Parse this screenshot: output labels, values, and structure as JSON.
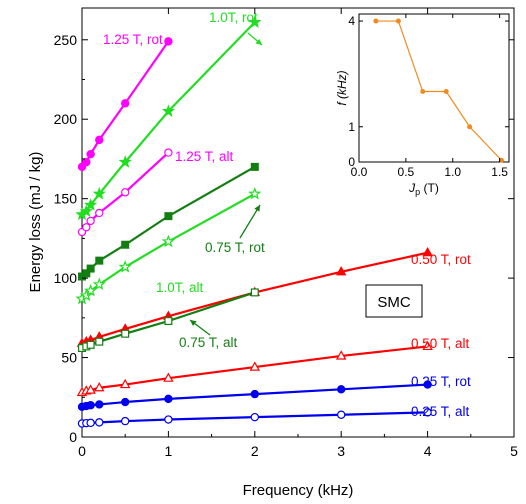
{
  "chart_data": {
    "type": "line",
    "xlabel": "Frequency (kHz)",
    "ylabel": "Energy loss (mJ / kg)",
    "xlim": [
      0,
      5
    ],
    "ylim": [
      0,
      270
    ],
    "xticks": [
      0,
      1,
      2,
      3,
      4,
      5
    ],
    "yticks": [
      0,
      50,
      100,
      150,
      200,
      250
    ],
    "grid": false,
    "annotation": "SMC",
    "series": [
      {
        "name": "1.25 T, rot",
        "color": "#ff00ff",
        "marker": "circle",
        "filled": true,
        "x": [
          0,
          0.05,
          0.1,
          0.2,
          0.5,
          1
        ],
        "y": [
          170,
          173,
          178,
          187,
          210,
          249
        ]
      },
      {
        "name": "1.0T, rot",
        "color": "#22dd22",
        "marker": "star",
        "filled": true,
        "x": [
          0,
          0.05,
          0.1,
          0.2,
          0.5,
          1,
          2
        ],
        "y": [
          140,
          142,
          146,
          153,
          173,
          205,
          261
        ]
      },
      {
        "name": "1.25 T, alt",
        "color": "#ff00ff",
        "marker": "circle",
        "filled": false,
        "x": [
          0,
          0.05,
          0.1,
          0.2,
          0.5,
          1
        ],
        "y": [
          129,
          132,
          136,
          141,
          154,
          179
        ]
      },
      {
        "name": "0.75 T, rot",
        "color": "#137f13",
        "marker": "square",
        "filled": true,
        "x": [
          0,
          0.05,
          0.1,
          0.2,
          0.5,
          1,
          2
        ],
        "y": [
          101,
          103,
          106,
          111,
          121,
          139,
          170
        ]
      },
      {
        "name": "1.0T, alt",
        "color": "#22dd22",
        "marker": "star",
        "filled": false,
        "x": [
          0,
          0.05,
          0.1,
          0.2,
          0.5,
          1,
          2
        ],
        "y": [
          87,
          89,
          92,
          96,
          107,
          123,
          153
        ]
      },
      {
        "name": "0.50 T, rot",
        "color": "#ff0000",
        "marker": "triangle",
        "filled": true,
        "x": [
          0,
          0.05,
          0.1,
          0.2,
          0.5,
          1,
          2,
          3,
          4
        ],
        "y": [
          59,
          60,
          61,
          63,
          68,
          76,
          91,
          104,
          116
        ]
      },
      {
        "name": "0.75 T, alt",
        "color": "#137f13",
        "marker": "square",
        "filled": false,
        "x": [
          0,
          0.05,
          0.1,
          0.2,
          0.5,
          1,
          2
        ],
        "y": [
          56,
          57,
          58,
          60,
          65,
          73,
          91
        ]
      },
      {
        "name": "0.50 T, alt",
        "color": "#ff0000",
        "marker": "triangle",
        "filled": false,
        "x": [
          0,
          0.05,
          0.1,
          0.2,
          0.5,
          1,
          2,
          3,
          4
        ],
        "y": [
          28,
          29,
          29.5,
          31,
          33,
          37,
          44,
          51,
          57
        ]
      },
      {
        "name": "0.25 T, rot",
        "color": "#0000ee",
        "marker": "circle",
        "filled": true,
        "x": [
          0,
          0.05,
          0.1,
          0.2,
          0.5,
          1,
          2,
          3,
          4
        ],
        "y": [
          19,
          19.5,
          20,
          20.5,
          22,
          24,
          27,
          30,
          33
        ]
      },
      {
        "name": "0.25 T, alt",
        "color": "#0000ee",
        "marker": "circle",
        "filled": false,
        "x": [
          0,
          0.05,
          0.1,
          0.2,
          0.5,
          1,
          2,
          3,
          4
        ],
        "y": [
          8.5,
          8.7,
          8.9,
          9.2,
          10,
          11,
          12.5,
          14,
          15.5
        ]
      }
    ],
    "inset": {
      "type": "line",
      "xlabel": "J",
      "xlabel_sub": "p",
      "xlabel_unit": " (T)",
      "ylabel": "f (kHz)",
      "xlim": [
        0,
        1.6
      ],
      "ylim": [
        0,
        4.2
      ],
      "xticks": [
        "0.0",
        "0.5",
        "1.0",
        "1.5"
      ],
      "xtick_values": [
        0,
        0.5,
        1.0,
        1.5
      ],
      "yticks": [
        "0",
        "1",
        "4"
      ],
      "ytick_values": [
        0,
        1,
        4
      ],
      "color": "#f08c1e",
      "x": [
        0.18,
        0.42,
        0.68,
        0.93,
        1.18,
        1.52
      ],
      "y": [
        4,
        4,
        2,
        2,
        1,
        0.05
      ]
    }
  }
}
